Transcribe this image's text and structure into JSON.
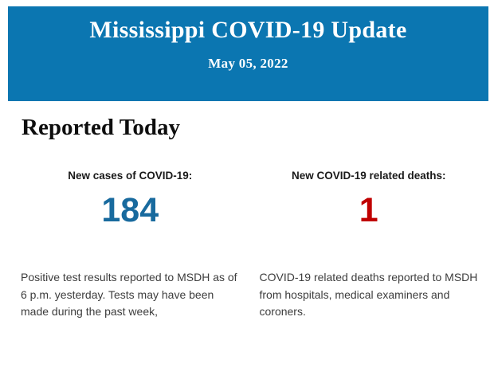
{
  "header": {
    "title": "Mississippi COVID-19 Update",
    "date": "May 05, 2022",
    "background_color": "#0b76b1",
    "text_color": "#ffffff"
  },
  "section": {
    "title": "Reported Today"
  },
  "stats": [
    {
      "label": "New cases of COVID-19:",
      "value": "184",
      "value_color": "#186a9e",
      "description": "Positive test results reported to MSDH as of 6 p.m. yesterday. Tests may have been made during the past week,"
    },
    {
      "label": "New COVID-19 related deaths:",
      "value": "1",
      "value_color": "#c00000",
      "description": "COVID-19 related deaths reported to MSDH from hospitals, medical examiners and coroners."
    }
  ]
}
